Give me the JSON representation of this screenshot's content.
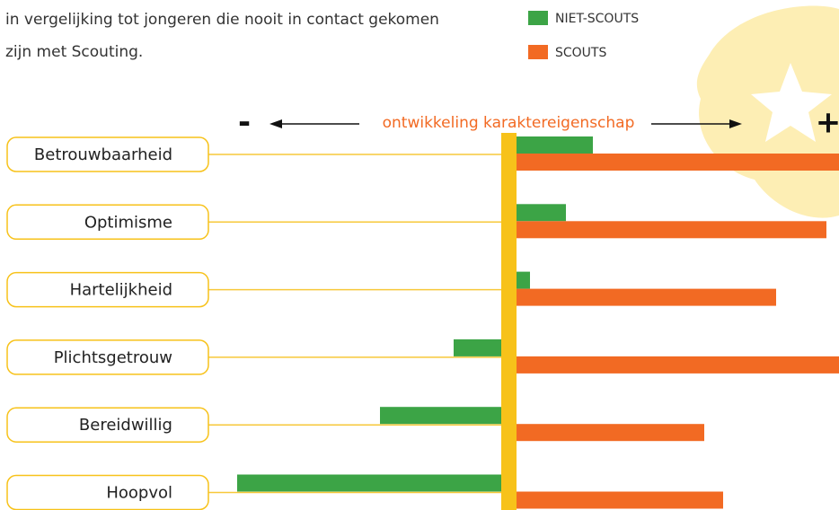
{
  "intro": [
    "in vergelijking tot jongeren die nooit in contact gekomen",
    "zijn met Scouting."
  ],
  "chart_data": {
    "type": "bar",
    "categories": [
      "Betrouwbaarheid",
      "Optimisme",
      "Hartelijkheid",
      "Plichtsgetrouw",
      "Bereidwillig",
      "Hoopvol"
    ],
    "series": [
      {
        "name": "NIET-SCOUTS",
        "color": "#3ca446",
        "values": [
          85,
          55,
          15,
          -53,
          -135,
          -294
        ]
      },
      {
        "name": "SCOUTS",
        "color": "#f26a23",
        "values": [
          362,
          345,
          289,
          362,
          209,
          230
        ]
      }
    ],
    "xlim": [
      -310,
      359
    ],
    "axis_label": "ontwikkeling karaktereigenschap",
    "axis_ends": [
      "-",
      "+"
    ]
  }
}
